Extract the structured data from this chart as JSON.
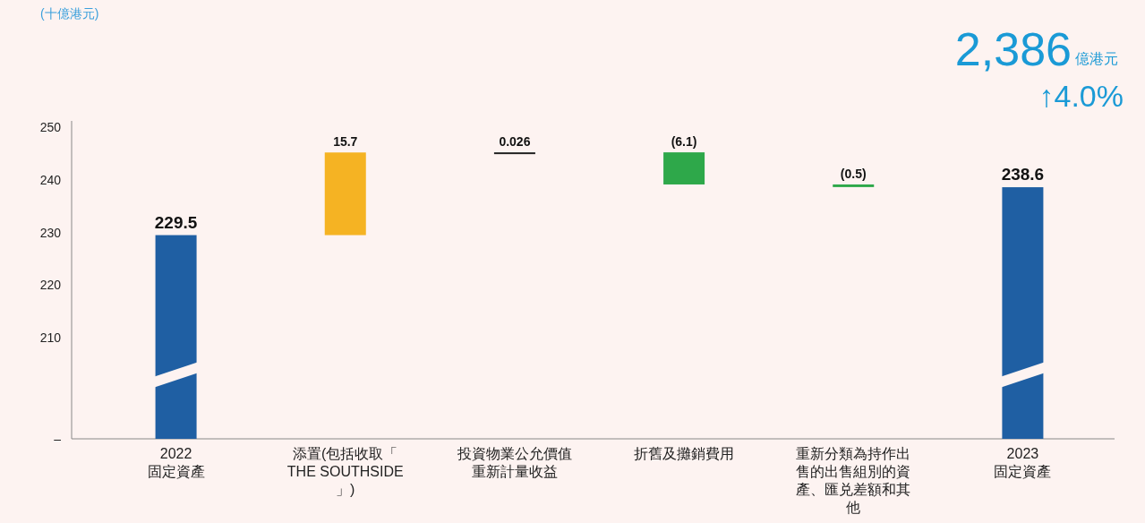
{
  "chart_data": {
    "type": "bar",
    "categories": [
      "2022 固定資產",
      "添置(包括收取「THE SOUTHSIDE」)",
      "投資物業公允價值重新計量收益",
      "折舊及攤銷費用",
      "重新分類為持作出售的出售組別的資產、匯兑差額和其他",
      "2023 固定資產"
    ],
    "values": [
      229.5,
      15.7,
      0.026,
      -6.1,
      -0.5,
      238.6
    ],
    "base": [
      0,
      229.5,
      245.2,
      245.226,
      239.126,
      0
    ],
    "colors": [
      "#1f5fa3",
      "#f5b323",
      "#222222",
      "#2ea84a",
      "#2ea84a",
      "#1f5fa3"
    ],
    "value_labels": [
      "229.5",
      "15.7",
      "0.026",
      "(6.1)",
      "(0.5)",
      "238.6"
    ],
    "ylim": [
      190.8,
      251.2
    ],
    "yticks": [
      {
        "value": 190.8,
        "label": "–"
      },
      210,
      220,
      230,
      240,
      250
    ],
    "grid": false,
    "annotations": [
      "2,386",
      "億港元",
      "↑4.0%",
      "(十億港元)"
    ]
  }
}
